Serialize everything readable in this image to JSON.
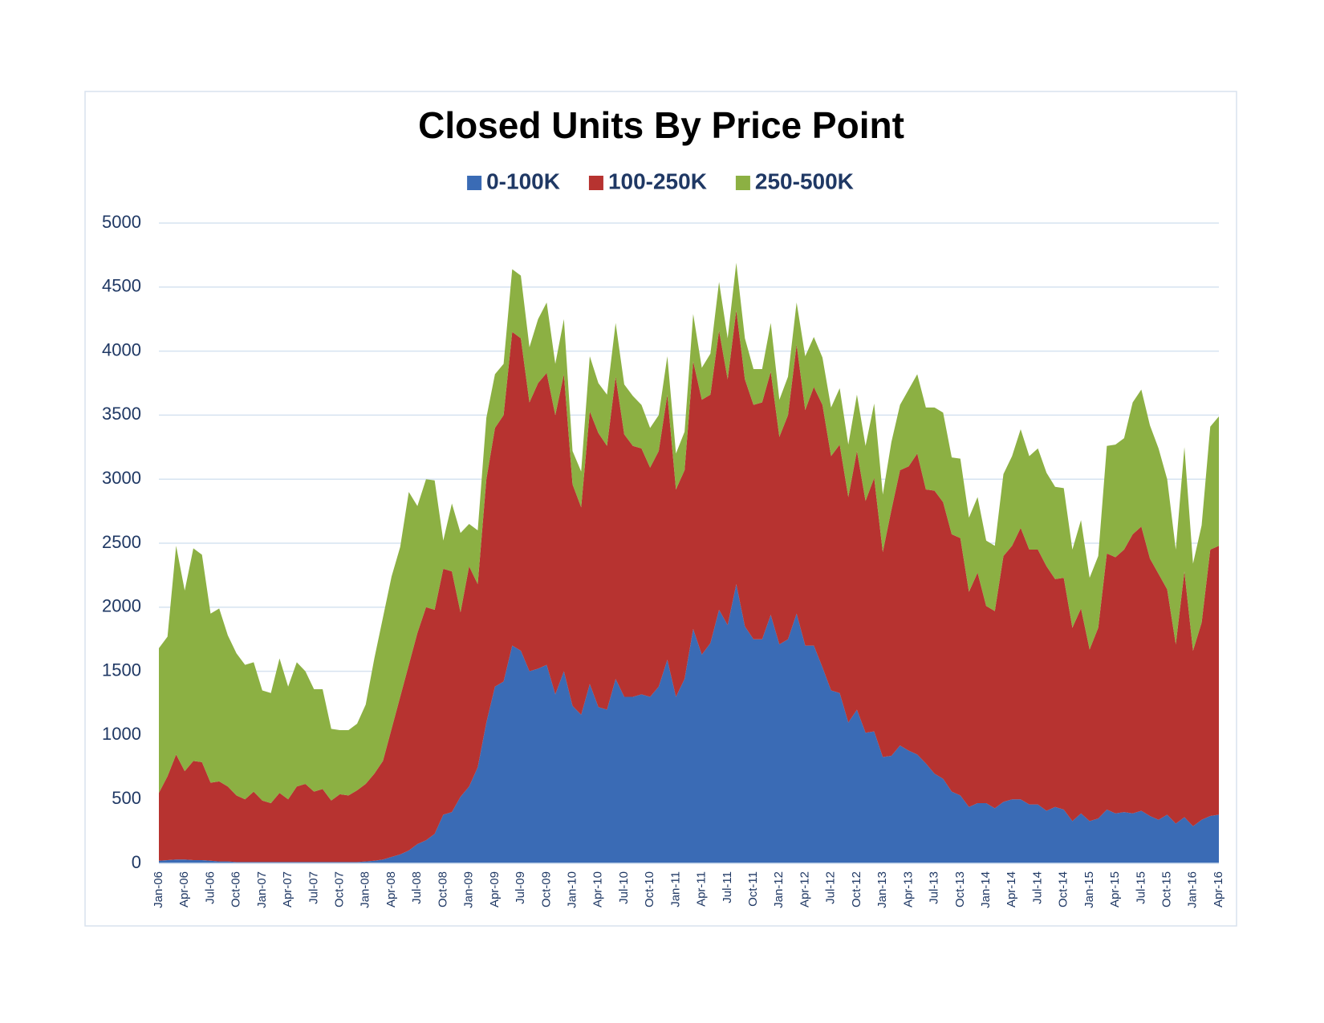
{
  "chart_data": {
    "type": "stacked-area",
    "title": "Closed Units By Price Point",
    "categories": [
      "Jan-06",
      null,
      null,
      "Apr-06",
      null,
      null,
      "Jul-06",
      null,
      null,
      "Oct-06",
      null,
      null,
      "Jan-07",
      null,
      null,
      "Apr-07",
      null,
      null,
      "Jul-07",
      null,
      null,
      "Oct-07",
      null,
      null,
      "Jan-08",
      null,
      null,
      "Apr-08",
      null,
      null,
      "Jul-08",
      null,
      null,
      "Oct-08",
      null,
      null,
      "Jan-09",
      null,
      null,
      "Apr-09",
      null,
      null,
      "Jul-09",
      null,
      null,
      "Oct-09",
      null,
      null,
      "Jan-10",
      null,
      null,
      "Apr-10",
      null,
      null,
      "Jul-10",
      null,
      null,
      "Oct-10",
      null,
      null,
      "Jan-11",
      null,
      null,
      "Apr-11",
      null,
      null,
      "Jul-11",
      null,
      null,
      "Oct-11",
      null,
      null,
      "Jan-12",
      null,
      null,
      "Apr-12",
      null,
      null,
      "Jul-12",
      null,
      null,
      "Oct-12",
      null,
      null,
      "Jan-13",
      null,
      null,
      "Apr-13",
      null,
      null,
      "Jul-13",
      null,
      null,
      "Oct-13",
      null,
      null,
      "Jan-14",
      null,
      null,
      "Apr-14",
      null,
      null,
      "Jul-14",
      null,
      null,
      "Oct-14",
      null,
      null,
      "Jan-15",
      null,
      null,
      "Apr-15",
      null,
      null,
      "Jul-15",
      null,
      null,
      "Oct-15",
      null,
      null,
      "Jan-16",
      null,
      null,
      "Apr-16"
    ],
    "series": [
      {
        "name": "0-100K",
        "color": "#3a6bb5",
        "values": [
          20,
          25,
          30,
          30,
          25,
          25,
          20,
          15,
          15,
          10,
          10,
          10,
          10,
          10,
          10,
          10,
          10,
          10,
          10,
          10,
          10,
          10,
          10,
          10,
          15,
          20,
          30,
          50,
          70,
          100,
          150,
          180,
          230,
          380,
          400,
          520,
          600,
          750,
          1100,
          1380,
          1420,
          1700,
          1660,
          1500,
          1520,
          1550,
          1320,
          1500,
          1230,
          1160,
          1400,
          1220,
          1200,
          1440,
          1300,
          1300,
          1320,
          1300,
          1380,
          1590,
          1300,
          1440,
          1830,
          1630,
          1720,
          1980,
          1860,
          2180,
          1850,
          1750,
          1750,
          1940,
          1710,
          1750,
          1950,
          1700,
          1700,
          1530,
          1350,
          1330,
          1100,
          1200,
          1020,
          1030,
          830,
          840,
          920,
          880,
          850,
          780,
          700,
          660,
          560,
          530,
          440,
          470,
          470,
          430,
          480,
          500,
          500,
          460,
          460,
          410,
          440,
          420,
          330,
          390,
          330,
          350,
          420,
          390,
          400,
          390,
          410,
          370,
          340,
          380,
          310,
          360,
          290,
          340,
          370,
          380
        ]
      },
      {
        "name": "100-250K",
        "color": "#b73330",
        "values": [
          530,
          655,
          820,
          690,
          775,
          765,
          610,
          625,
          585,
          520,
          490,
          550,
          480,
          460,
          540,
          490,
          590,
          610,
          550,
          570,
          480,
          530,
          520,
          560,
          605,
          680,
          770,
          1000,
          1230,
          1450,
          1650,
          1820,
          1750,
          1920,
          1880,
          1440,
          1720,
          1430,
          1900,
          2020,
          2080,
          2450,
          2440,
          2100,
          2230,
          2280,
          2180,
          2320,
          1730,
          1620,
          2130,
          2140,
          2060,
          2360,
          2050,
          1960,
          1920,
          1790,
          1840,
          2070,
          1620,
          1630,
          2090,
          1990,
          1940,
          2180,
          1920,
          2140,
          1930,
          1830,
          1850,
          1900,
          1620,
          1750,
          2100,
          1840,
          2020,
          2050,
          1830,
          1940,
          1760,
          2020,
          1810,
          1980,
          1600,
          1920,
          2150,
          2220,
          2350,
          2140,
          2210,
          2160,
          2010,
          2010,
          1680,
          1800,
          1540,
          1540,
          1920,
          1980,
          2120,
          1990,
          1990,
          1910,
          1780,
          1810,
          1510,
          1600,
          1340,
          1490,
          2000,
          2000,
          2050,
          2180,
          2220,
          2010,
          1920,
          1760,
          1400,
          1920,
          1370,
          1540,
          2080,
          2100
        ]
      },
      {
        "name": "250-500K",
        "color": "#8cb043",
        "values": [
          1130,
          1090,
          1630,
          1410,
          1660,
          1620,
          1320,
          1350,
          1180,
          1110,
          1050,
          1010,
          860,
          860,
          1050,
          880,
          970,
          880,
          800,
          780,
          560,
          500,
          510,
          520,
          620,
          900,
          1120,
          1190,
          1170,
          1350,
          990,
          1000,
          1010,
          220,
          530,
          620,
          330,
          420,
          480,
          420,
          400,
          490,
          490,
          430,
          500,
          550,
          400,
          430,
          260,
          280,
          430,
          390,
          400,
          420,
          390,
          390,
          340,
          310,
          280,
          300,
          280,
          300,
          370,
          250,
          320,
          380,
          320,
          370,
          320,
          280,
          260,
          380,
          290,
          300,
          330,
          420,
          390,
          370,
          380,
          440,
          410,
          440,
          430,
          580,
          450,
          530,
          510,
          600,
          620,
          640,
          650,
          700,
          600,
          620,
          580,
          590,
          510,
          510,
          640,
          700,
          770,
          730,
          790,
          730,
          720,
          700,
          610,
          690,
          560,
          560,
          840,
          880,
          870,
          1030,
          1070,
          1040,
          980,
          860,
          740,
          970,
          680,
          760,
          960,
          1010
        ]
      }
    ],
    "ylim": [
      0,
      5000
    ],
    "yticks": [
      0,
      500,
      1000,
      1500,
      2000,
      2500,
      3000,
      3500,
      4000,
      4500,
      5000
    ],
    "grid": true,
    "legend": "top"
  }
}
